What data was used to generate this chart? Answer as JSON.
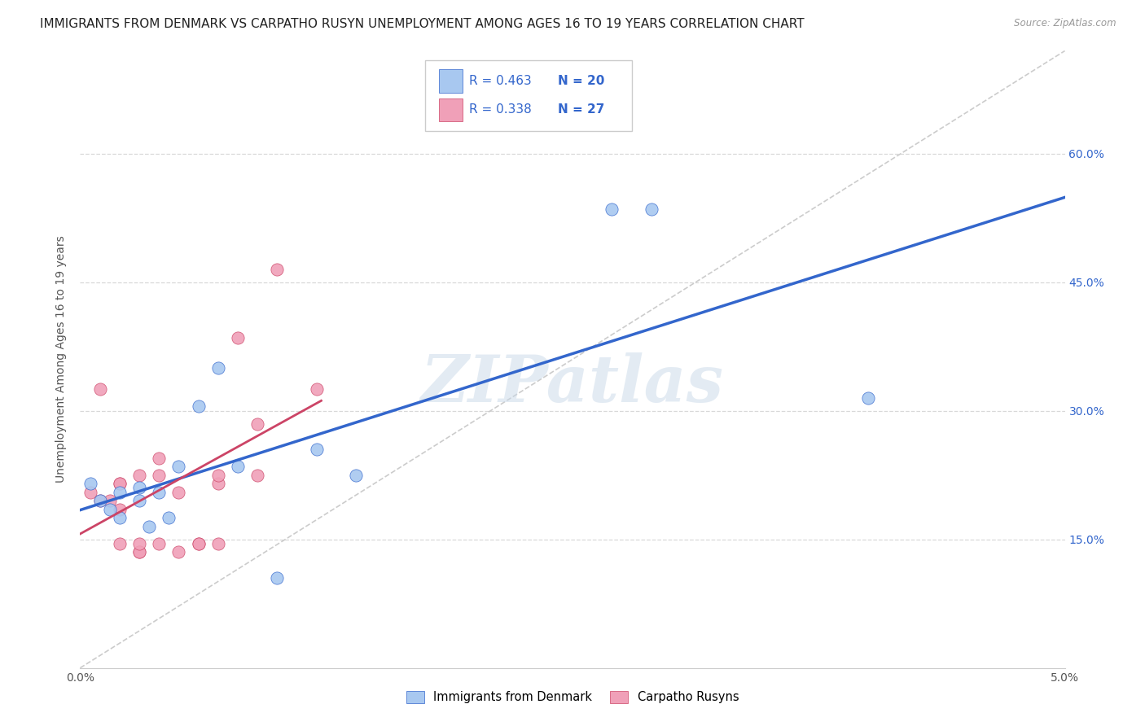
{
  "title": "IMMIGRANTS FROM DENMARK VS CARPATHO RUSYN UNEMPLOYMENT AMONG AGES 16 TO 19 YEARS CORRELATION CHART",
  "source": "Source: ZipAtlas.com",
  "ylabel": "Unemployment Among Ages 16 to 19 years",
  "xlim": [
    0.0,
    0.05
  ],
  "ylim": [
    0.0,
    0.72
  ],
  "xticks": [
    0.0,
    0.01,
    0.02,
    0.03,
    0.04,
    0.05
  ],
  "xtick_labels": [
    "0.0%",
    "",
    "",
    "",
    "",
    "5.0%"
  ],
  "ytick_labels": [
    "15.0%",
    "30.0%",
    "45.0%",
    "60.0%"
  ],
  "ytick_positions": [
    0.15,
    0.3,
    0.45,
    0.6
  ],
  "background_color": "#ffffff",
  "grid_color": "#d8d8d8",
  "watermark": "ZIPatlas",
  "denmark_x": [
    0.0005,
    0.001,
    0.0015,
    0.002,
    0.002,
    0.003,
    0.003,
    0.0035,
    0.004,
    0.0045,
    0.005,
    0.006,
    0.007,
    0.008,
    0.01,
    0.012,
    0.014,
    0.027,
    0.029,
    0.04
  ],
  "denmark_y": [
    0.215,
    0.195,
    0.185,
    0.205,
    0.175,
    0.195,
    0.21,
    0.165,
    0.205,
    0.175,
    0.235,
    0.305,
    0.35,
    0.235,
    0.105,
    0.255,
    0.225,
    0.535,
    0.535,
    0.315
  ],
  "rusyn_x": [
    0.0005,
    0.001,
    0.001,
    0.0015,
    0.002,
    0.002,
    0.002,
    0.002,
    0.003,
    0.003,
    0.003,
    0.003,
    0.004,
    0.004,
    0.004,
    0.005,
    0.005,
    0.006,
    0.006,
    0.007,
    0.007,
    0.007,
    0.008,
    0.009,
    0.009,
    0.01,
    0.012
  ],
  "rusyn_y": [
    0.205,
    0.325,
    0.195,
    0.195,
    0.215,
    0.215,
    0.185,
    0.145,
    0.135,
    0.135,
    0.225,
    0.145,
    0.245,
    0.225,
    0.145,
    0.205,
    0.135,
    0.145,
    0.145,
    0.215,
    0.225,
    0.145,
    0.385,
    0.285,
    0.225,
    0.465,
    0.325
  ],
  "denmark_color": "#a8c8f0",
  "rusyn_color": "#f0a0b8",
  "denmark_line_color": "#3366cc",
  "rusyn_line_color": "#cc4466",
  "diagonal_color": "#cccccc",
  "legend_r_denmark": "0.463",
  "legend_n_denmark": "20",
  "legend_r_rusyn": "0.338",
  "legend_n_rusyn": "27",
  "legend1_label": "Immigrants from Denmark",
  "legend2_label": "Carpatho Rusyns",
  "title_fontsize": 11,
  "axis_label_fontsize": 10,
  "tick_fontsize": 10,
  "legend_fontsize": 11
}
